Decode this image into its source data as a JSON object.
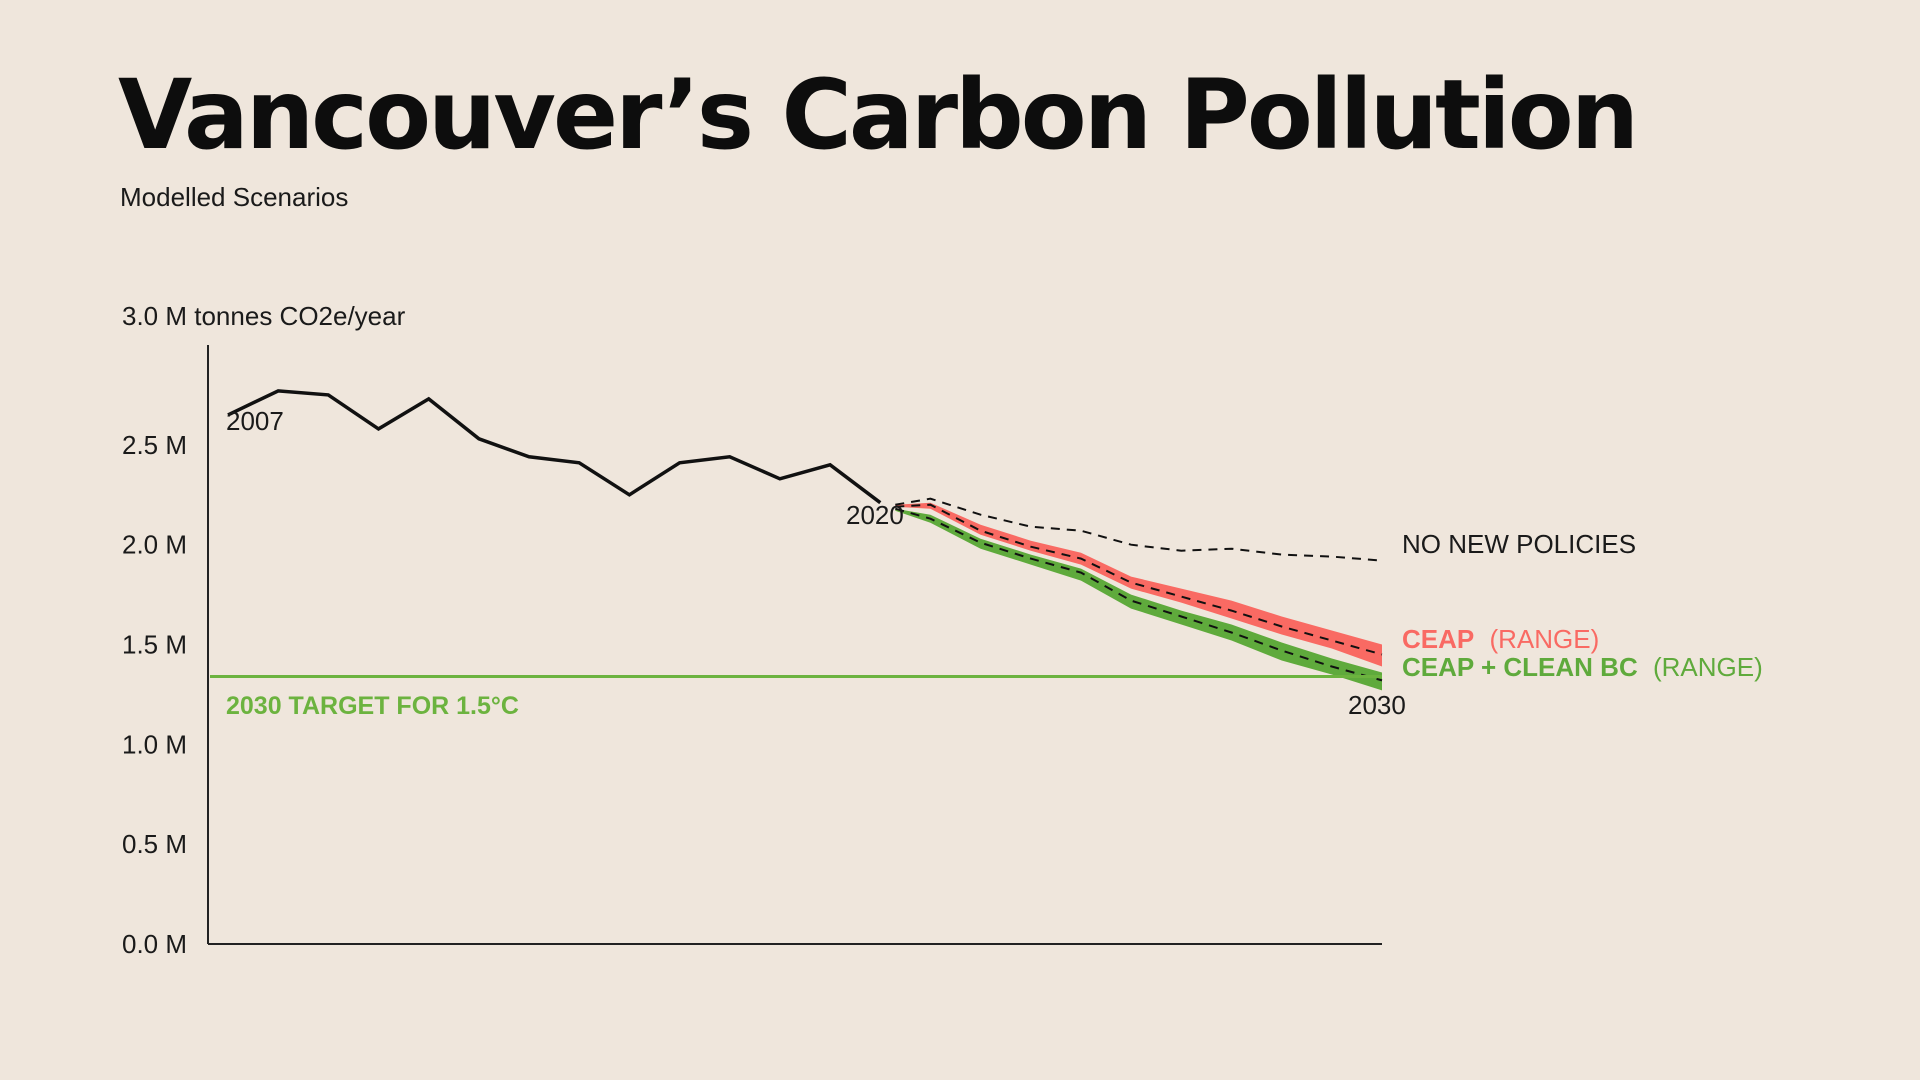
{
  "title": "Vancouver’s Carbon Pollution",
  "subtitle": "Modelled Scenarios",
  "colors": {
    "background": "#efe6dc",
    "historical": "#111111",
    "ceap": "#f96a63",
    "clean_bc": "#5faa3c",
    "overlap": "#f2a12a",
    "target": "#6cb33f",
    "axis": "#222222"
  },
  "chart_data": {
    "type": "line",
    "ylabel": "3.0 M tonnes CO2e/year",
    "ylim": [
      0,
      3.0
    ],
    "xlim": [
      2007,
      2030
    ],
    "yticks": [
      {
        "value": 2.5,
        "label": "2.5 M"
      },
      {
        "value": 2.0,
        "label": "2.0 M"
      },
      {
        "value": 1.5,
        "label": "1.5 M"
      },
      {
        "value": 1.0,
        "label": "1.0 M"
      },
      {
        "value": 0.5,
        "label": "0.5 M"
      },
      {
        "value": 0.0,
        "label": "0.0 M"
      }
    ],
    "annotations": {
      "start_year": "2007",
      "end_history_year": "2020",
      "end_year": "2030"
    },
    "historical": {
      "x": [
        2007,
        2008,
        2009,
        2010,
        2011,
        2012,
        2013,
        2014,
        2015,
        2016,
        2017,
        2018,
        2019,
        2020
      ],
      "y": [
        2.65,
        2.77,
        2.75,
        2.58,
        2.73,
        2.53,
        2.44,
        2.41,
        2.25,
        2.41,
        2.44,
        2.33,
        2.4,
        2.21
      ]
    },
    "no_new_policies": {
      "label": "NO NEW POLICIES",
      "x": [
        2020.3,
        2021,
        2022,
        2023,
        2024,
        2025,
        2026,
        2027,
        2028,
        2029,
        2030
      ],
      "y": [
        2.2,
        2.23,
        2.15,
        2.09,
        2.07,
        2.0,
        1.97,
        1.98,
        1.95,
        1.94,
        1.92
      ]
    },
    "ceap": {
      "label_bold": "CEAP",
      "label_range": "(RANGE)",
      "x": [
        2020.3,
        2021,
        2022,
        2023,
        2024,
        2025,
        2026,
        2027,
        2028,
        2029,
        2030
      ],
      "upper": [
        2.2,
        2.21,
        2.1,
        2.02,
        1.96,
        1.84,
        1.78,
        1.72,
        1.64,
        1.57,
        1.5
      ],
      "lower": [
        2.19,
        2.18,
        2.05,
        1.97,
        1.9,
        1.78,
        1.71,
        1.63,
        1.55,
        1.48,
        1.39
      ],
      "mid": [
        2.19,
        2.2,
        2.07,
        1.99,
        1.93,
        1.81,
        1.74,
        1.67,
        1.59,
        1.52,
        1.45
      ]
    },
    "ceap_clean_bc": {
      "label_bold": "CEAP + CLEAN BC",
      "label_range": "(RANGE)",
      "x": [
        2020.3,
        2021,
        2022,
        2023,
        2024,
        2025,
        2026,
        2027,
        2028,
        2029,
        2030
      ],
      "upper": [
        2.18,
        2.15,
        2.03,
        1.95,
        1.88,
        1.75,
        1.67,
        1.6,
        1.51,
        1.43,
        1.36
      ],
      "lower": [
        2.17,
        2.11,
        1.98,
        1.9,
        1.82,
        1.68,
        1.6,
        1.52,
        1.42,
        1.35,
        1.27
      ],
      "mid": [
        2.18,
        2.13,
        2.01,
        1.93,
        1.86,
        1.72,
        1.64,
        1.56,
        1.47,
        1.39,
        1.32
      ]
    },
    "target": {
      "label": "2030 TARGET FOR 1.5°C",
      "value": 1.34
    }
  }
}
